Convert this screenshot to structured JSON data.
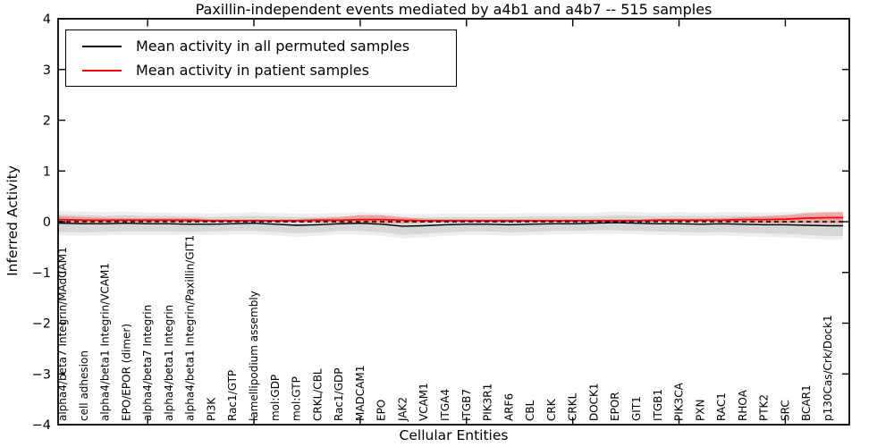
{
  "figure": {
    "title": "Paxillin-independent events mediated by a4b1 and a4b7 -- 515 samples",
    "xlabel": "Cellular Entities",
    "ylabel": "Inferred Activity"
  },
  "legend": {
    "items": [
      {
        "label": "Mean activity in all permuted samples",
        "color": "#000000"
      },
      {
        "label": "Mean activity in patient samples",
        "color": "#ff0000"
      }
    ]
  },
  "chart_data": {
    "type": "line",
    "title": "Paxillin-independent events mediated by a4b1 and a4b7 -- 515 samples",
    "xlabel": "Cellular Entities",
    "ylabel": "Inferred Activity",
    "ylim": [
      -4,
      4
    ],
    "yticks": [
      4,
      3,
      2,
      1,
      0,
      -1,
      -2,
      -3,
      -4
    ],
    "ytick_labels": [
      "4",
      "3",
      "2",
      "1",
      "0",
      "−1",
      "−2",
      "−3",
      "−4"
    ],
    "xtick_positions": [
      5,
      10,
      15,
      20,
      25,
      30,
      35
    ],
    "grid": false,
    "legend_position": "upper left",
    "categories": [
      "alpha4/beta7 Integrin/MAdCAM1",
      "cell adhesion",
      "alpha4/beta1 Integrin/VCAM1",
      "EPO/EPOR (dimer)",
      "alpha4/beta7 Integrin",
      "alpha4/beta1 Integrin",
      "alpha4/beta1 Integrin/Paxillin/GIT1",
      "PI3K",
      "Rac1/GTP",
      "lamellipodium assembly",
      "mol:GDP",
      "mol:GTP",
      "CRKL/CBL",
      "Rac1/GDP",
      "MADCAM1",
      "EPO",
      "JAK2",
      "VCAM1",
      "ITGA4",
      "ITGB7",
      "PIK3R1",
      "ARF6",
      "CBL",
      "CRK",
      "CRKL",
      "DOCK1",
      "EPOR",
      "GIT1",
      "ITGB1",
      "PIK3CA",
      "PXN",
      "RAC1",
      "RHOA",
      "PTK2",
      "SRC",
      "BCAR1",
      "p130Cas/Crk/Dock1"
    ],
    "series": [
      {
        "name": "Mean activity in all permuted samples",
        "color": "#000000",
        "style": "solid",
        "values": [
          -0.03,
          -0.04,
          -0.04,
          -0.03,
          -0.04,
          -0.04,
          -0.05,
          -0.05,
          -0.04,
          -0.03,
          -0.05,
          -0.07,
          -0.06,
          -0.04,
          -0.03,
          -0.05,
          -0.09,
          -0.08,
          -0.06,
          -0.05,
          -0.05,
          -0.06,
          -0.05,
          -0.04,
          -0.04,
          -0.03,
          -0.02,
          -0.03,
          -0.04,
          -0.04,
          -0.05,
          -0.04,
          -0.05,
          -0.06,
          -0.06,
          -0.07,
          -0.08
        ]
      },
      {
        "name": "Mean activity in patient samples",
        "color": "#ff0000",
        "style": "solid",
        "values": [
          0.04,
          0.03,
          0.03,
          0.03,
          0.03,
          0.03,
          0.03,
          0.02,
          0.02,
          0.02,
          0.02,
          0.02,
          0.03,
          0.03,
          0.04,
          0.04,
          0.03,
          0.02,
          0.02,
          0.02,
          0.02,
          0.02,
          0.02,
          0.02,
          0.02,
          0.02,
          0.02,
          0.02,
          0.03,
          0.03,
          0.03,
          0.03,
          0.04,
          0.04,
          0.05,
          0.07,
          0.08
        ]
      }
    ],
    "bands": [
      {
        "name": "permuted-band-outer",
        "color": "#ebebeb",
        "opacity": 0.85,
        "upper": [
          0.21,
          0.2,
          0.19,
          0.2,
          0.18,
          0.18,
          0.17,
          0.16,
          0.17,
          0.19,
          0.17,
          0.16,
          0.16,
          0.17,
          0.19,
          0.18,
          0.15,
          0.15,
          0.16,
          0.16,
          0.16,
          0.16,
          0.17,
          0.17,
          0.17,
          0.18,
          0.2,
          0.19,
          0.18,
          0.19,
          0.18,
          0.19,
          0.19,
          0.18,
          0.19,
          0.19,
          0.19
        ],
        "lower": [
          -0.27,
          -0.28,
          -0.27,
          -0.26,
          -0.26,
          -0.26,
          -0.27,
          -0.26,
          -0.25,
          -0.25,
          -0.27,
          -0.3,
          -0.28,
          -0.25,
          -0.25,
          -0.28,
          -0.33,
          -0.31,
          -0.28,
          -0.26,
          -0.26,
          -0.28,
          -0.27,
          -0.25,
          -0.25,
          -0.24,
          -0.24,
          -0.25,
          -0.26,
          -0.27,
          -0.28,
          -0.27,
          -0.29,
          -0.3,
          -0.31,
          -0.33,
          -0.35
        ]
      },
      {
        "name": "permuted-band",
        "color": "#d7d7d7",
        "opacity": 1,
        "upper": [
          0.14,
          0.13,
          0.12,
          0.13,
          0.11,
          0.11,
          0.1,
          0.09,
          0.1,
          0.12,
          0.1,
          0.09,
          0.09,
          0.1,
          0.12,
          0.11,
          0.08,
          0.08,
          0.09,
          0.09,
          0.09,
          0.09,
          0.1,
          0.1,
          0.1,
          0.11,
          0.13,
          0.12,
          0.11,
          0.12,
          0.11,
          0.12,
          0.12,
          0.11,
          0.12,
          0.12,
          0.12
        ],
        "lower": [
          -0.2,
          -0.21,
          -0.2,
          -0.19,
          -0.19,
          -0.19,
          -0.2,
          -0.19,
          -0.18,
          -0.18,
          -0.2,
          -0.23,
          -0.21,
          -0.18,
          -0.18,
          -0.21,
          -0.26,
          -0.24,
          -0.21,
          -0.19,
          -0.19,
          -0.21,
          -0.2,
          -0.18,
          -0.18,
          -0.17,
          -0.17,
          -0.18,
          -0.19,
          -0.2,
          -0.21,
          -0.2,
          -0.22,
          -0.23,
          -0.24,
          -0.26,
          -0.28
        ]
      },
      {
        "name": "patient-band",
        "color": "#f08080",
        "opacity": 0.6,
        "upper": [
          0.11,
          0.09,
          0.08,
          0.07,
          0.07,
          0.07,
          0.07,
          0.05,
          0.05,
          0.05,
          0.05,
          0.05,
          0.07,
          0.09,
          0.13,
          0.13,
          0.09,
          0.06,
          0.05,
          0.05,
          0.05,
          0.05,
          0.05,
          0.05,
          0.05,
          0.05,
          0.05,
          0.05,
          0.06,
          0.06,
          0.06,
          0.07,
          0.09,
          0.11,
          0.13,
          0.17,
          0.19
        ],
        "lower": [
          -0.03,
          -0.03,
          -0.02,
          -0.01,
          -0.01,
          -0.01,
          -0.01,
          -0.01,
          -0.01,
          -0.01,
          -0.01,
          -0.01,
          -0.01,
          -0.03,
          -0.05,
          -0.05,
          -0.03,
          -0.02,
          -0.01,
          -0.01,
          -0.01,
          -0.01,
          -0.01,
          -0.01,
          -0.01,
          -0.01,
          -0.01,
          -0.01,
          0.0,
          0.0,
          0.0,
          -0.01,
          -0.01,
          -0.03,
          -0.03,
          -0.03,
          -0.03
        ]
      }
    ],
    "zero_line": {
      "value": 0,
      "color": "#000000",
      "style": "dashed"
    }
  }
}
